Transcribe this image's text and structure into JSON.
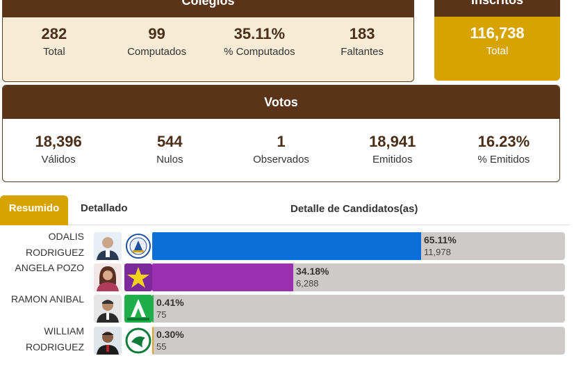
{
  "colegios": {
    "title": "Colegios",
    "stats": [
      {
        "value": "282",
        "label": "Total"
      },
      {
        "value": "99",
        "label": "Computados"
      },
      {
        "value": "35.11%",
        "label": "% Computados"
      },
      {
        "value": "183",
        "label": "Faltantes"
      }
    ]
  },
  "inscritos": {
    "title": "Inscritos",
    "value": "116,738",
    "label": "Total"
  },
  "votos": {
    "title": "Votos",
    "stats": [
      {
        "value": "18,396",
        "label": "Válidos"
      },
      {
        "value": "544",
        "label": "Nulos"
      },
      {
        "value": "1",
        "label": "Observados"
      },
      {
        "value": "18,941",
        "label": "Emitidos"
      },
      {
        "value": "16.23%",
        "label": "% Emitidos"
      }
    ]
  },
  "tabs": {
    "resumido": "Resumido",
    "detallado": "Detallado"
  },
  "detail_title": "Detalle de Candidatos(as)",
  "colors": {
    "brown": "#5a3418",
    "gold": "#d6a300",
    "track": "#cfcaca"
  },
  "candidates": [
    {
      "name_line1": "ODALIS",
      "name_line2": "RODRIGUEZ",
      "pct": "65.11%",
      "votes": "11,978",
      "share": 65.11,
      "color": "#0a6fd6",
      "logo": "pld-logo-icon"
    },
    {
      "name_line1": "ANGELA POZO",
      "name_line2": "",
      "pct": "34.18%",
      "votes": "6,288",
      "share": 34.18,
      "color": "#9a2fb0",
      "logo": "star-logo-icon"
    },
    {
      "name_line1": "RAMON ANIBAL",
      "name_line2": "",
      "pct": "0.41%",
      "votes": "75",
      "share": 0.41,
      "color": "#1fae4a",
      "logo": "alianza-pais-logo-icon"
    },
    {
      "name_line1": "WILLIAM",
      "name_line2": "RODRIGUEZ",
      "pct": "0.30%",
      "votes": "55",
      "share": 0.3,
      "color": "#e0a020",
      "logo": "prd-logo-icon"
    }
  ]
}
